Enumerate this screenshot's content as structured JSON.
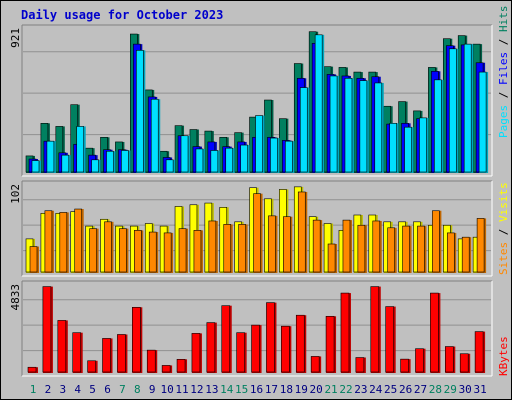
{
  "title": "Daily usage for October 2023",
  "chart_data": [
    {
      "type": "bar",
      "categories": [
        "1",
        "2",
        "3",
        "4",
        "5",
        "6",
        "7",
        "8",
        "9",
        "10",
        "11",
        "12",
        "13",
        "14",
        "15",
        "16",
        "17",
        "18",
        "19",
        "20",
        "21",
        "22",
        "23",
        "24",
        "25",
        "26",
        "27",
        "28",
        "29",
        "30",
        "31"
      ],
      "weekend_days": [
        "1",
        "7",
        "8",
        "14",
        "15",
        "21",
        "22",
        "28",
        "29"
      ],
      "max_label": "921",
      "ymax": 921,
      "series": [
        {
          "name": "Hits",
          "color": "#008060",
          "values": [
            110,
            320,
            300,
            440,
            160,
            230,
            200,
            895,
            535,
            140,
            305,
            280,
            270,
            230,
            260,
            360,
            470,
            350,
            705,
            910,
            685,
            680,
            650,
            650,
            430,
            460,
            400,
            680,
            865,
            885,
            830
          ]
        },
        {
          "name": "Files",
          "color": "#0000ff",
          "values": [
            90,
            205,
            130,
            185,
            115,
            150,
            150,
            830,
            490,
            100,
            240,
            170,
            200,
            170,
            200,
            230,
            230,
            210,
            610,
            835,
            635,
            625,
            610,
            620,
            315,
            320,
            350,
            655,
            820,
            825,
            710
          ]
        },
        {
          "name": "Pages",
          "color": "#00e0ff",
          "values": [
            80,
            205,
            115,
            300,
            85,
            140,
            145,
            790,
            475,
            85,
            240,
            155,
            145,
            160,
            180,
            370,
            225,
            205,
            550,
            890,
            625,
            610,
            595,
            580,
            320,
            295,
            355,
            600,
            800,
            830,
            650
          ]
        }
      ]
    },
    {
      "type": "bar",
      "categories": [
        "1",
        "2",
        "3",
        "4",
        "5",
        "6",
        "7",
        "8",
        "9",
        "10",
        "11",
        "12",
        "13",
        "14",
        "15",
        "16",
        "17",
        "18",
        "19",
        "20",
        "21",
        "22",
        "23",
        "24",
        "25",
        "26",
        "27",
        "28",
        "29",
        "30",
        "31"
      ],
      "max_label": "102",
      "ymax": 102,
      "series": [
        {
          "name": "Visits",
          "color": "#ffff00",
          "values": [
            40,
            70,
            70,
            72,
            55,
            63,
            55,
            55,
            58,
            55,
            78,
            80,
            82,
            77,
            60,
            100,
            87,
            98,
            101,
            66,
            58,
            50,
            68,
            68,
            60,
            60,
            60,
            56,
            56,
            40,
            42
          ]
        },
        {
          "name": "Sites",
          "color": "#ff8800",
          "values": [
            31,
            73,
            71,
            75,
            52,
            60,
            52,
            50,
            48,
            47,
            52,
            50,
            61,
            57,
            57,
            93,
            67,
            66,
            95,
            62,
            34,
            62,
            56,
            61,
            53,
            55,
            55,
            73,
            47,
            42,
            64
          ]
        }
      ]
    },
    {
      "type": "bar",
      "categories": [
        "1",
        "2",
        "3",
        "4",
        "5",
        "6",
        "7",
        "8",
        "9",
        "10",
        "11",
        "12",
        "13",
        "14",
        "15",
        "16",
        "17",
        "18",
        "19",
        "20",
        "21",
        "22",
        "23",
        "24",
        "25",
        "26",
        "27",
        "28",
        "29",
        "30",
        "31"
      ],
      "max_label": "4833",
      "ymax": 4833,
      "series": [
        {
          "name": "KBytes",
          "color": "#ff0000",
          "values": [
            320,
            4800,
            2920,
            2240,
            680,
            1920,
            2140,
            3650,
            1270,
            420,
            760,
            2200,
            2800,
            3740,
            2240,
            2660,
            3910,
            2600,
            3210,
            920,
            3150,
            4440,
            860,
            4800,
            3690,
            770,
            1350,
            4440,
            1470,
            1070,
            2300
          ]
        }
      ]
    }
  ]
}
